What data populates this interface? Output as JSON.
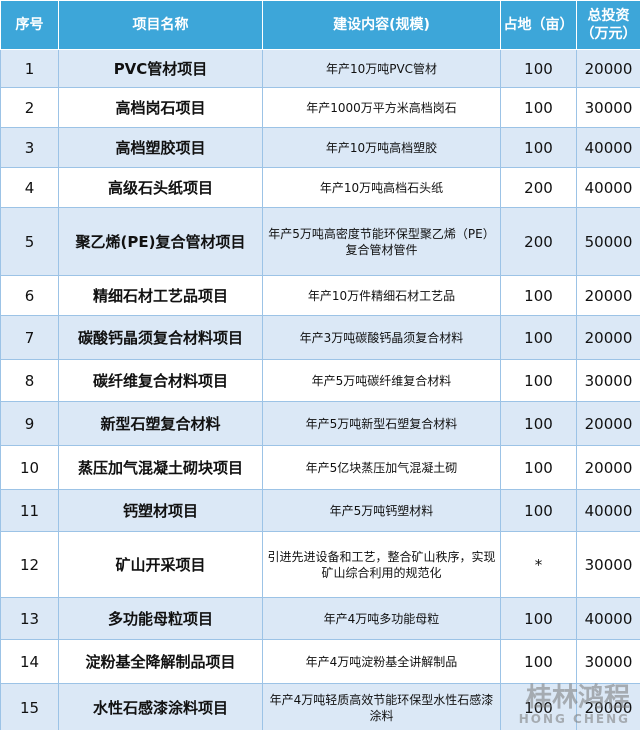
{
  "table": {
    "headers": [
      "序号",
      "项目名称",
      "建设内容(规模)",
      "占地（亩）",
      "总投资（万元）"
    ],
    "rows": [
      [
        "1",
        "PVC管材项目",
        "年产10万吨PVC管材",
        "100",
        "20000"
      ],
      [
        "2",
        "高档岗石项目",
        "年产1000万平方米高档岗石",
        "100",
        "30000"
      ],
      [
        "3",
        "高档塑胶项目",
        "年产10万吨高档塑胶",
        "100",
        "40000"
      ],
      [
        "4",
        "高级石头纸项目",
        "年产10万吨高档石头纸",
        "200",
        "40000"
      ],
      [
        "5",
        "聚乙烯(PE)复合管材项目",
        "年产5万吨高密度节能环保型聚乙烯（PE）复合管材管件",
        "200",
        "50000"
      ],
      [
        "6",
        "精细石材工艺品项目",
        "年产10万件精细石材工艺品",
        "100",
        "20000"
      ],
      [
        "7",
        "碳酸钙晶须复合材料项目",
        "年产3万吨碳酸钙晶须复合材料",
        "100",
        "20000"
      ],
      [
        "8",
        "碳纤维复合材料项目",
        "年产5万吨碳纤维复合材料",
        "100",
        "30000"
      ],
      [
        "9",
        "新型石塑复合材料",
        "年产5万吨新型石塑复合材料",
        "100",
        "20000"
      ],
      [
        "10",
        "蒸压加气混凝土砌块项目",
        "年产5亿块蒸压加气混凝土砌",
        "100",
        "20000"
      ],
      [
        "11",
        "钙塑材项目",
        "年产5万吨钙塑材料",
        "100",
        "40000"
      ],
      [
        "12",
        "矿山开采项目",
        "引进先进设备和工艺，整合矿山秩序，实现矿山综合利用的规范化",
        "*",
        "30000"
      ],
      [
        "13",
        "多功能母粒项目",
        "年产4万吨多功能母粒",
        "100",
        "40000"
      ],
      [
        "14",
        "淀粉基全降解制品项目",
        "年产4万吨淀粉基全讲解制品",
        "100",
        "30000"
      ],
      [
        "15",
        "水性石感漆涂料项目",
        "年产4万吨轻质高效节能环保型水性石感漆涂料",
        "100",
        "20000"
      ]
    ],
    "watermark": [
      "桂林鸿程",
      "HONG CHENG"
    ]
  }
}
